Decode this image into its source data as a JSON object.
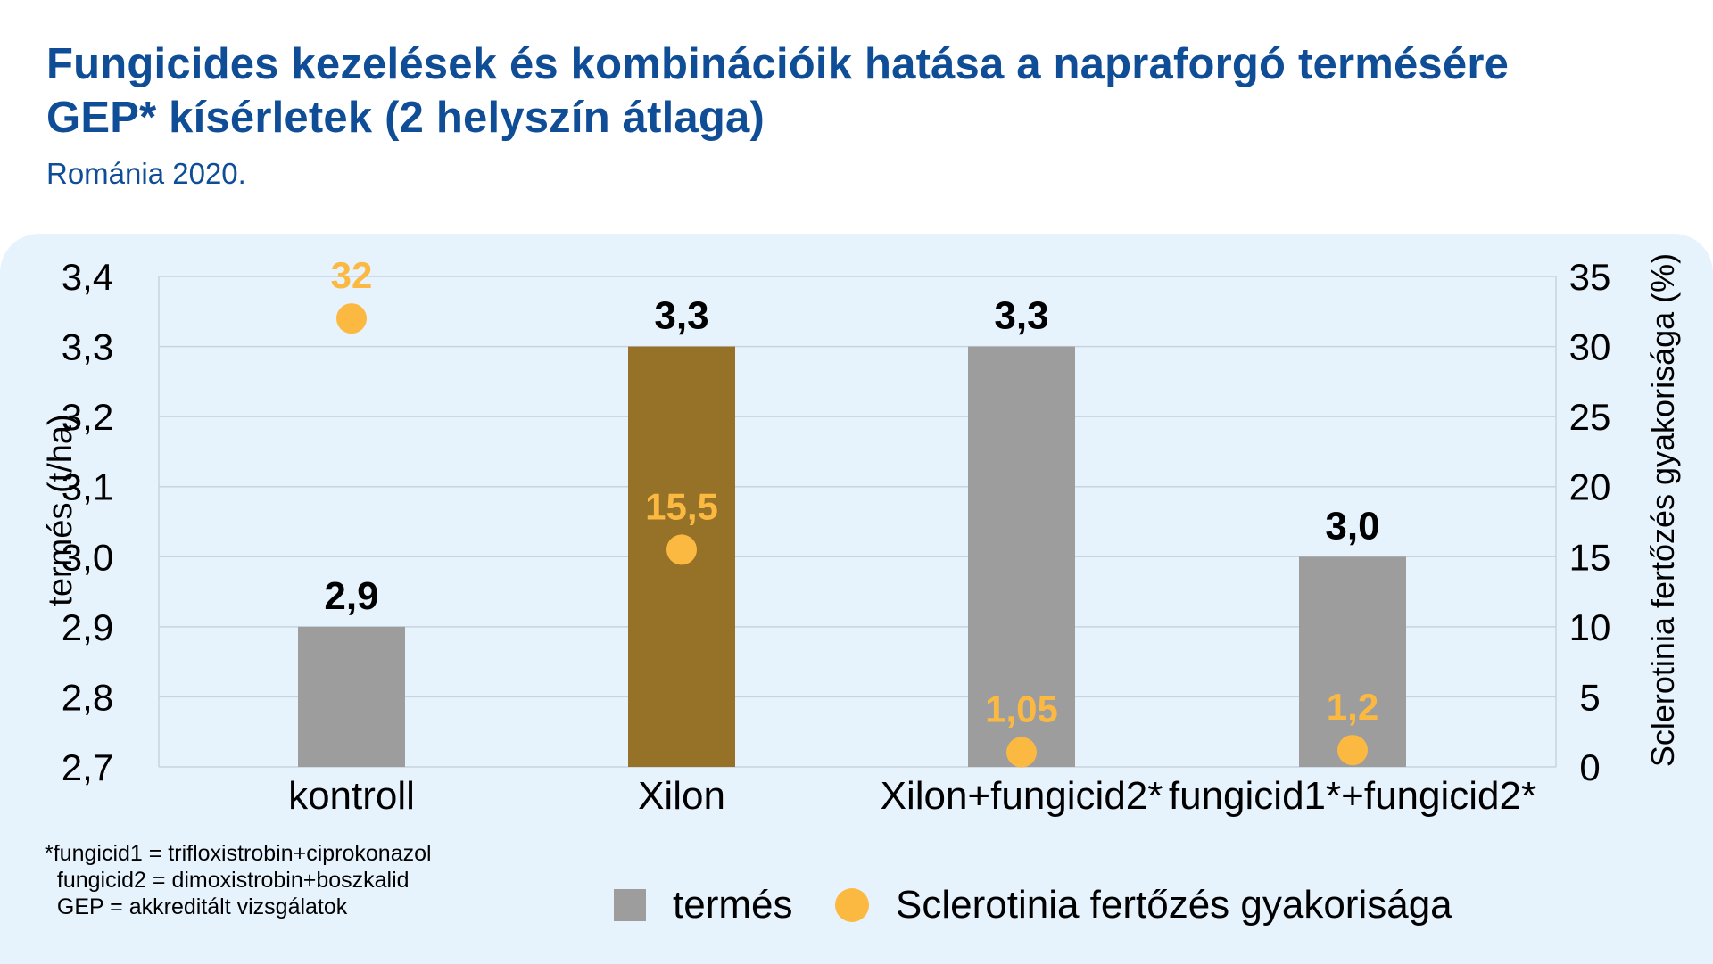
{
  "title": {
    "line1": "Fungicides kezelések és kombinációik hatása a napraforgó termésére",
    "line2": "GEP* kísérletek (2 helyszín átlaga)",
    "subtitle": "Románia 2020."
  },
  "chart_data": {
    "type": "bar",
    "categories": [
      "kontroll",
      "Xilon",
      "Xilon+fungicid2*",
      "fungicid1*+fungicid2*"
    ],
    "series": [
      {
        "name": "termés",
        "kind": "bar",
        "axis": "left",
        "values": [
          2.9,
          3.3,
          3.3,
          3.0
        ],
        "labels": [
          "2,9",
          "3,3",
          "3,3",
          "3,0"
        ],
        "colors": [
          "#9d9d9d",
          "#967228",
          "#9d9d9d",
          "#9d9d9d"
        ]
      },
      {
        "name": "Sclerotinia fertőzés gyakorisága",
        "kind": "scatter",
        "axis": "right",
        "values": [
          32,
          15.5,
          1.05,
          1.2
        ],
        "labels": [
          "32",
          "15,5",
          "1,05",
          "1,2"
        ],
        "color": "#fbb942"
      }
    ],
    "y_left": {
      "label": "termés (t/ha)",
      "min": 2.7,
      "max": 3.4,
      "ticks": [
        "3,4",
        "3,3",
        "3,2",
        "3,1",
        "3,0",
        "2,9",
        "2,8",
        "2,7"
      ]
    },
    "y_right": {
      "label": "Sclerotinia fertőzés gyakorisága (%)",
      "min": 0,
      "max": 35,
      "ticks": [
        "35",
        "30",
        "25",
        "20",
        "15",
        "10",
        "5",
        "0"
      ]
    },
    "grid": true,
    "legend_position": "bottom",
    "colors": {
      "bar": "#9d9d9d",
      "highlight_bar": "#967228",
      "dot": "#fbb942",
      "title": "#0f4d96"
    }
  },
  "footnote": [
    "*fungicid1 = trifloxistrobin+ciprokonazol",
    "  fungicid2 = dimoxistrobin+boszkalid",
    "  GEP = akkreditált vizsgálatok"
  ],
  "legend": {
    "bar_label": "termés",
    "dot_label": "Sclerotinia fertőzés gyakorisága"
  }
}
